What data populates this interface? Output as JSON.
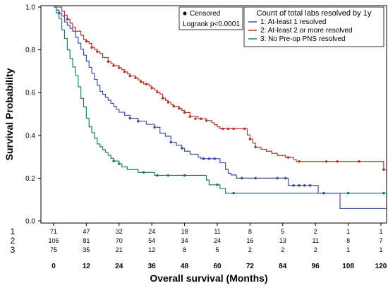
{
  "chart_data": {
    "type": "line",
    "subtype": "kaplan-meier",
    "xlabel": "Overall survival (Months)",
    "ylabel": "Survival Probability",
    "xlim": [
      0,
      122
    ],
    "ylim": [
      0,
      1.0
    ],
    "xticks": [
      0,
      12,
      24,
      36,
      48,
      60,
      72,
      84,
      96,
      108,
      120
    ],
    "yticks": [
      0.0,
      0.2,
      0.4,
      0.6,
      0.8,
      1.0
    ],
    "grid": false,
    "legend": {
      "placement": "top-right",
      "title": "Count of total labs resolved by 1y",
      "censor_label": "Censored",
      "stat_label": "Logrank p<0.0001"
    },
    "series": [
      {
        "name": "1: At-least 1 resolved",
        "color": "#3f4f9e",
        "steps": [
          [
            0,
            1.0
          ],
          [
            1,
            0.986
          ],
          [
            2,
            0.972
          ],
          [
            3,
            0.958
          ],
          [
            4,
            0.93
          ],
          [
            5,
            0.915
          ],
          [
            6,
            0.9
          ],
          [
            7,
            0.887
          ],
          [
            8,
            0.859
          ],
          [
            9,
            0.831
          ],
          [
            10,
            0.803
          ],
          [
            11,
            0.775
          ],
          [
            12,
            0.747
          ],
          [
            13,
            0.718
          ],
          [
            14,
            0.69
          ],
          [
            15,
            0.662
          ],
          [
            16,
            0.634
          ],
          [
            17,
            0.606
          ],
          [
            18,
            0.592
          ],
          [
            19,
            0.578
          ],
          [
            20,
            0.564
          ],
          [
            21,
            0.55
          ],
          [
            22,
            0.536
          ],
          [
            23,
            0.522
          ],
          [
            24,
            0.508
          ],
          [
            26,
            0.494
          ],
          [
            28,
            0.48
          ],
          [
            30,
            0.48
          ],
          [
            31,
            0.466
          ],
          [
            34,
            0.452
          ],
          [
            36,
            0.452
          ],
          [
            37,
            0.438
          ],
          [
            39,
            0.41
          ],
          [
            41,
            0.396
          ],
          [
            43,
            0.368
          ],
          [
            45,
            0.354
          ],
          [
            47,
            0.34
          ],
          [
            48,
            0.326
          ],
          [
            50,
            0.312
          ],
          [
            53,
            0.298
          ],
          [
            54,
            0.291
          ],
          [
            60,
            0.291
          ],
          [
            61,
            0.272
          ],
          [
            63,
            0.241
          ],
          [
            64,
            0.223
          ],
          [
            65,
            0.215
          ],
          [
            67,
            0.2
          ],
          [
            72,
            0.2
          ],
          [
            73,
            0.2
          ],
          [
            85,
            0.2
          ],
          [
            86,
            0.166
          ],
          [
            95,
            0.166
          ],
          [
            97,
            0.13
          ],
          [
            104,
            0.13
          ],
          [
            105,
            0.058
          ],
          [
            122,
            0.058
          ]
        ],
        "censored": [
          [
            2,
            0.972
          ],
          [
            28,
            0.48
          ],
          [
            31,
            0.466
          ],
          [
            37,
            0.438
          ],
          [
            43,
            0.368
          ],
          [
            47,
            0.34
          ],
          [
            55,
            0.291
          ],
          [
            57,
            0.291
          ],
          [
            59,
            0.291
          ],
          [
            69,
            0.2
          ],
          [
            74,
            0.2
          ],
          [
            82,
            0.2
          ],
          [
            85,
            0.2
          ],
          [
            88,
            0.166
          ],
          [
            90,
            0.166
          ],
          [
            92,
            0.166
          ],
          [
            94,
            0.166
          ],
          [
            99,
            0.13
          ]
        ]
      },
      {
        "name": "2: At-least 2 or more resolved",
        "color": "#b3382c",
        "steps": [
          [
            0,
            1.0
          ],
          [
            3,
            0.981
          ],
          [
            4,
            0.962
          ],
          [
            5,
            0.943
          ],
          [
            6,
            0.925
          ],
          [
            7,
            0.906
          ],
          [
            8,
            0.887
          ],
          [
            10,
            0.868
          ],
          [
            11,
            0.849
          ],
          [
            12,
            0.84
          ],
          [
            13,
            0.83
          ],
          [
            14,
            0.811
          ],
          [
            15,
            0.802
          ],
          [
            16,
            0.792
          ],
          [
            17,
            0.783
          ],
          [
            18,
            0.764
          ],
          [
            20,
            0.745
          ],
          [
            21,
            0.735
          ],
          [
            22,
            0.726
          ],
          [
            24,
            0.716
          ],
          [
            25,
            0.707
          ],
          [
            26,
            0.697
          ],
          [
            27,
            0.688
          ],
          [
            28,
            0.678
          ],
          [
            30,
            0.669
          ],
          [
            31,
            0.659
          ],
          [
            32,
            0.65
          ],
          [
            33,
            0.64
          ],
          [
            35,
            0.631
          ],
          [
            36,
            0.621
          ],
          [
            37,
            0.612
          ],
          [
            38,
            0.602
          ],
          [
            39,
            0.593
          ],
          [
            40,
            0.574
          ],
          [
            41,
            0.564
          ],
          [
            42,
            0.555
          ],
          [
            43,
            0.545
          ],
          [
            44,
            0.536
          ],
          [
            46,
            0.526
          ],
          [
            47,
            0.517
          ],
          [
            48,
            0.507
          ],
          [
            50,
            0.488
          ],
          [
            53,
            0.478
          ],
          [
            56,
            0.469
          ],
          [
            58,
            0.459
          ],
          [
            59,
            0.45
          ],
          [
            60,
            0.44
          ],
          [
            61,
            0.431
          ],
          [
            62,
            0.431
          ],
          [
            70,
            0.431
          ],
          [
            71,
            0.402
          ],
          [
            72,
            0.383
          ],
          [
            73,
            0.364
          ],
          [
            74,
            0.345
          ],
          [
            76,
            0.335
          ],
          [
            78,
            0.326
          ],
          [
            80,
            0.316
          ],
          [
            82,
            0.306
          ],
          [
            84,
            0.306
          ],
          [
            85,
            0.297
          ],
          [
            87,
            0.297
          ],
          [
            88,
            0.287
          ],
          [
            89,
            0.278
          ],
          [
            90,
            0.278
          ],
          [
            120,
            0.278
          ],
          [
            121,
            0.24
          ],
          [
            122,
            0.24
          ]
        ],
        "censored": [
          [
            5,
            0.943
          ],
          [
            12,
            0.84
          ],
          [
            14,
            0.811
          ],
          [
            16,
            0.792
          ],
          [
            20,
            0.745
          ],
          [
            22,
            0.726
          ],
          [
            24,
            0.716
          ],
          [
            26,
            0.697
          ],
          [
            28,
            0.678
          ],
          [
            30,
            0.669
          ],
          [
            32,
            0.65
          ],
          [
            34,
            0.64
          ],
          [
            36,
            0.621
          ],
          [
            38,
            0.602
          ],
          [
            40,
            0.574
          ],
          [
            42,
            0.555
          ],
          [
            44,
            0.536
          ],
          [
            46,
            0.526
          ],
          [
            48,
            0.507
          ],
          [
            50,
            0.488
          ],
          [
            52,
            0.478
          ],
          [
            54,
            0.478
          ],
          [
            56,
            0.469
          ],
          [
            62,
            0.431
          ],
          [
            64,
            0.431
          ],
          [
            66,
            0.431
          ],
          [
            70,
            0.431
          ],
          [
            72,
            0.383
          ],
          [
            74,
            0.345
          ],
          [
            86,
            0.297
          ],
          [
            90,
            0.278
          ],
          [
            100,
            0.278
          ],
          [
            104,
            0.278
          ],
          [
            112,
            0.278
          ],
          [
            121,
            0.24
          ]
        ]
      },
      {
        "name": "3: No Pre-op PNS resolved",
        "color": "#1a7c6a",
        "steps": [
          [
            0,
            1.0
          ],
          [
            1,
            0.973
          ],
          [
            2,
            0.947
          ],
          [
            3,
            0.893
          ],
          [
            4,
            0.853
          ],
          [
            5,
            0.8
          ],
          [
            6,
            0.76
          ],
          [
            7,
            0.72
          ],
          [
            8,
            0.68
          ],
          [
            9,
            0.627
          ],
          [
            10,
            0.573
          ],
          [
            11,
            0.533
          ],
          [
            12,
            0.48
          ],
          [
            13,
            0.44
          ],
          [
            14,
            0.413
          ],
          [
            15,
            0.387
          ],
          [
            16,
            0.36
          ],
          [
            17,
            0.347
          ],
          [
            18,
            0.333
          ],
          [
            19,
            0.32
          ],
          [
            20,
            0.307
          ],
          [
            21,
            0.293
          ],
          [
            22,
            0.28
          ],
          [
            24,
            0.267
          ],
          [
            25,
            0.253
          ],
          [
            27,
            0.24
          ],
          [
            31,
            0.227
          ],
          [
            36,
            0.227
          ],
          [
            37,
            0.213
          ],
          [
            55,
            0.213
          ],
          [
            56,
            0.191
          ],
          [
            57,
            0.169
          ],
          [
            60,
            0.169
          ],
          [
            61,
            0.152
          ],
          [
            62,
            0.152
          ],
          [
            63,
            0.13
          ],
          [
            122,
            0.13
          ]
        ],
        "censored": [
          [
            22,
            0.28
          ],
          [
            24,
            0.267
          ],
          [
            33,
            0.227
          ],
          [
            38,
            0.213
          ],
          [
            42,
            0.213
          ],
          [
            48,
            0.213
          ],
          [
            60,
            0.169
          ],
          [
            66,
            0.13
          ],
          [
            108,
            0.13
          ],
          [
            121,
            0.13
          ]
        ]
      }
    ],
    "risk_table": {
      "rows": [
        {
          "label": "1",
          "values": [
            "71",
            "47",
            "32",
            "24",
            "18",
            "11",
            "8",
            "5",
            "2",
            "1",
            "1"
          ]
        },
        {
          "label": "2",
          "values": [
            "106",
            "81",
            "70",
            "54",
            "34",
            "24",
            "16",
            "13",
            "11",
            "8",
            "7"
          ]
        },
        {
          "label": "3",
          "values": [
            "75",
            "35",
            "21",
            "12",
            "8",
            "5",
            "2",
            "2",
            "2",
            "1",
            "1"
          ]
        }
      ]
    }
  }
}
